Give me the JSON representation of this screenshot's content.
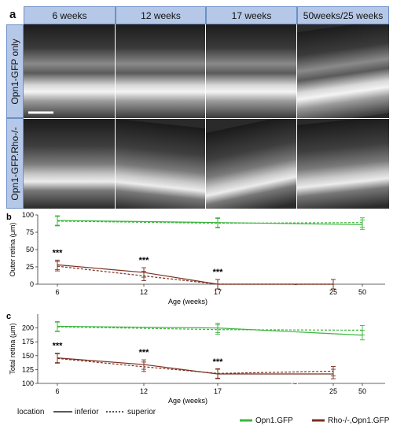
{
  "panel_a": {
    "letter": "a",
    "columns": [
      "6 weeks",
      "12 weeks",
      "17 weeks",
      "50weeks/25 weeks"
    ],
    "rows": [
      "Opn1-GFP only",
      "Opn1-GFP.Rho-/-"
    ]
  },
  "chart_data": [
    {
      "panel": "b",
      "type": "line",
      "ylabel": "Outer retina (μm)",
      "xlabel": "Age (weeks)",
      "x": [
        6,
        12,
        17,
        25,
        50
      ],
      "xticks": [
        "6",
        "12",
        "17",
        "25",
        "50"
      ],
      "axis_break": "~",
      "ylim": [
        0,
        100
      ],
      "yticks": [
        0,
        25,
        50,
        75,
        100
      ],
      "series": [
        {
          "name": "Opn1.GFP",
          "location": "inferior",
          "color": "#3cb53c",
          "x": [
            6,
            17,
            50
          ],
          "values": [
            92,
            89,
            86
          ]
        },
        {
          "name": "Opn1.GFP",
          "location": "superior",
          "color": "#3cb53c",
          "x": [
            6,
            17,
            50
          ],
          "values": [
            91,
            88,
            89
          ]
        },
        {
          "name": "Rho-/-,Opn1.GFP",
          "location": "inferior",
          "color": "#7a3020",
          "x": [
            6,
            12,
            17,
            25
          ],
          "values": [
            28,
            17,
            0,
            0
          ]
        },
        {
          "name": "Rho-/-,Opn1.GFP",
          "location": "superior",
          "color": "#7a3020",
          "x": [
            6,
            12,
            17,
            25
          ],
          "values": [
            26,
            12,
            0,
            0
          ]
        }
      ],
      "annotations": [
        {
          "x": 6,
          "text": "***"
        },
        {
          "x": 12,
          "text": "***"
        },
        {
          "x": 17,
          "text": "***"
        }
      ]
    },
    {
      "panel": "c",
      "type": "line",
      "ylabel": "Total retina (μm)",
      "xlabel": "Age (weeks)",
      "x": [
        6,
        12,
        17,
        25,
        50
      ],
      "xticks": [
        "6",
        "12",
        "17",
        "25",
        "50"
      ],
      "axis_break": "~",
      "ylim": [
        100,
        225
      ],
      "yticks": [
        100,
        125,
        150,
        175,
        200
      ],
      "series": [
        {
          "name": "Opn1.GFP",
          "location": "inferior",
          "color": "#3cb53c",
          "x": [
            6,
            17,
            50
          ],
          "values": [
            203,
            200,
            187
          ]
        },
        {
          "name": "Opn1.GFP",
          "location": "superior",
          "color": "#3cb53c",
          "x": [
            6,
            17,
            50
          ],
          "values": [
            202,
            197,
            196
          ]
        },
        {
          "name": "Rho-/-,Opn1.GFP",
          "location": "inferior",
          "color": "#7a3020",
          "x": [
            6,
            12,
            17,
            25
          ],
          "values": [
            146,
            134,
            117,
            117
          ]
        },
        {
          "name": "Rho-/-,Opn1.GFP",
          "location": "superior",
          "color": "#7a3020",
          "x": [
            6,
            12,
            17,
            25
          ],
          "values": [
            145,
            130,
            118,
            122
          ]
        }
      ],
      "annotations": [
        {
          "x": 6,
          "text": "***"
        },
        {
          "x": 12,
          "text": "***"
        },
        {
          "x": 17,
          "text": "***"
        }
      ]
    }
  ],
  "legend": {
    "location_title": "location",
    "linetypes": [
      {
        "label": "inferior",
        "style": "solid"
      },
      {
        "label": "superior",
        "style": "dotted"
      }
    ],
    "groups": [
      {
        "label": "Opn1.GFP",
        "color": "#3cb53c"
      },
      {
        "label": "Rho-/-,Opn1.GFP",
        "color": "#7a3020"
      }
    ]
  }
}
